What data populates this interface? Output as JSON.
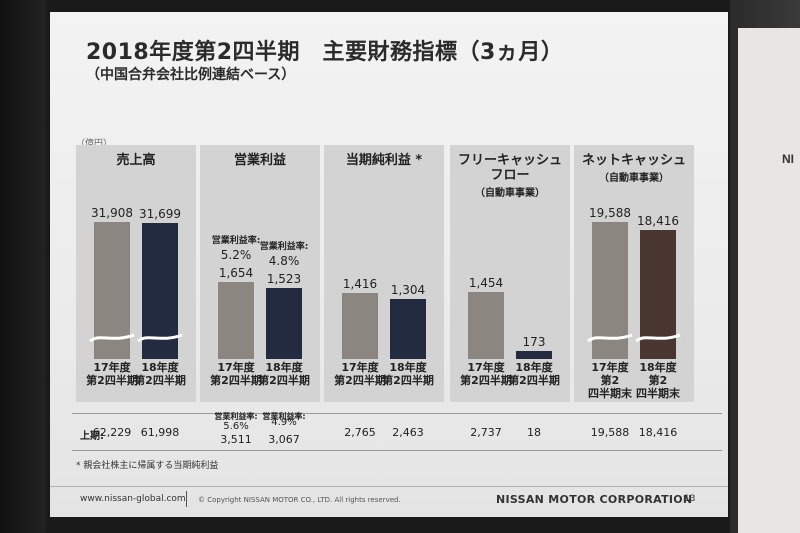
{
  "backdrop_text": "NI",
  "title": "2018年度第2四半期　主要財務指標（3ヵ月）",
  "subtitle": "（中国合弁会社比例連結ベース）",
  "unit": "（億円）",
  "chart_data": {
    "type": "bar",
    "unit": "億円",
    "panels": [
      {
        "title": "売上高",
        "subtitle": "",
        "categories": [
          "17年度\n第2四半期",
          "18年度\n第2四半期"
        ],
        "values": [
          31908,
          31699
        ],
        "value_labels": [
          "31,908",
          "31,699"
        ],
        "colors": [
          "#8b8680",
          "#232b40"
        ],
        "axis_break": true,
        "first_half": [
          "62,229",
          "61,998"
        ]
      },
      {
        "title": "営業利益",
        "subtitle": "",
        "categories": [
          "17年度\n第2四半期",
          "18年度\n第2四半期"
        ],
        "values": [
          1654,
          1523
        ],
        "value_labels": [
          "1,654",
          "1,523"
        ],
        "margin_label": "営業利益率:",
        "margins": [
          "5.2%",
          "4.8%"
        ],
        "colors": [
          "#8b8680",
          "#232b40"
        ],
        "axis_break": false,
        "first_half": [
          "3,511",
          "3,067"
        ],
        "first_half_margins": [
          "5.6%",
          "4.9%"
        ]
      },
      {
        "title": "当期純利益 *",
        "subtitle": "",
        "categories": [
          "17年度\n第2四半期",
          "18年度\n第2四半期"
        ],
        "values": [
          1416,
          1304
        ],
        "value_labels": [
          "1,416",
          "1,304"
        ],
        "colors": [
          "#8b8680",
          "#232b40"
        ],
        "axis_break": false,
        "first_half": [
          "2,765",
          "2,463"
        ]
      },
      {
        "title": "フリーキャッシュ\nフロー",
        "subtitle": "（自動車事業）",
        "categories": [
          "17年度\n第2四半期",
          "18年度\n第2四半期"
        ],
        "values": [
          1454,
          173
        ],
        "value_labels": [
          "1,454",
          "173"
        ],
        "colors": [
          "#8b8680",
          "#232b40"
        ],
        "axis_break": false,
        "first_half": [
          "2,737",
          "18"
        ]
      },
      {
        "title": "ネットキャッシュ",
        "subtitle": "（自動車事業）",
        "categories": [
          "17年度\n第2\n四半期末",
          "18年度\n第2\n四半期末"
        ],
        "values": [
          19588,
          18416
        ],
        "value_labels": [
          "19,588",
          "18,416"
        ],
        "colors": [
          "#8b8680",
          "#4a3630"
        ],
        "axis_break": true,
        "first_half": [
          "19,588",
          "18,416"
        ]
      }
    ],
    "first_half_label": "上期:"
  },
  "footnote": "* 親会社株主に帰属する当期純利益",
  "footer": {
    "url": "www.nissan-global.com",
    "copyright": "© Copyright NISSAN MOTOR CO., LTD. All rights reserved.",
    "brand": "NISSAN MOTOR CORPORATION",
    "page": "13"
  }
}
